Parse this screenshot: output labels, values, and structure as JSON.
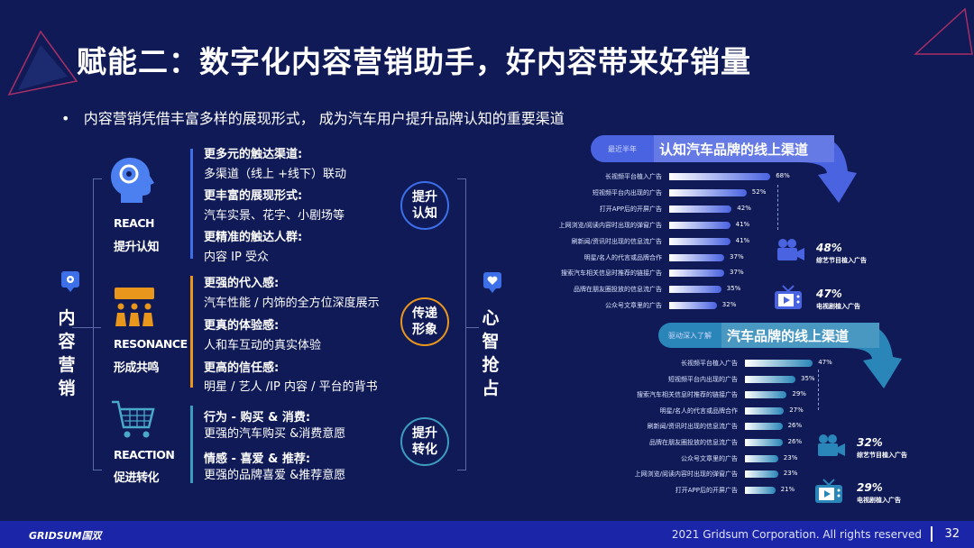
{
  "title": "赋能二：数字化内容营销助手，好内容带来好销量",
  "bullet": "内容营销凭借丰富多样的展现形式， 成为汽车用户提升品牌认知的重要渠道",
  "left_label": "内容营销",
  "right_label": "心智抢占",
  "stages": [
    {
      "en": "REACH",
      "cn": "提升认知",
      "circle": "提升认知",
      "color": "#3d6fe8",
      "lines": [
        [
          "更多元的触达渠道:",
          "b"
        ],
        [
          "多渠道（线上 +线下）联动",
          ""
        ],
        [
          "更丰富的展现形式:",
          "b"
        ],
        [
          "汽车实景、花字、小剧场等",
          ""
        ],
        [
          "更精准的触达人群:",
          "b"
        ],
        [
          "内容 IP 受众",
          ""
        ]
      ]
    },
    {
      "en": "RESONANCE",
      "cn": "形成共鸣",
      "circle": "传递形象",
      "color": "#e8961c",
      "lines": [
        [
          "更强的代入感:",
          "b"
        ],
        [
          "汽车性能 / 内饰的全方位深度展示",
          ""
        ],
        [
          "更真的体验感:",
          "b"
        ],
        [
          "人和车互动的真实体验",
          ""
        ],
        [
          "更高的信任感:",
          "b"
        ],
        [
          "明星 / 艺人 /IP 内容 / 平台的背书",
          ""
        ]
      ]
    },
    {
      "en": "REACTION",
      "cn": "促进转化",
      "circle": "提升转化",
      "color": "#3d9bbf",
      "lines": [
        [
          "行为 - 购买 & 消费:",
          "b"
        ],
        [
          "更强的汽车购买 &消费意愿",
          ""
        ],
        [
          "情感 - 喜爱 & 推荐:",
          "b"
        ],
        [
          "更强的品牌喜爱 &推荐意愿",
          ""
        ]
      ]
    }
  ],
  "chart_data": [
    {
      "type": "bar",
      "tag": "最近半年",
      "title": "认知汽车品牌的线上渠道",
      "color": "#4a63e0",
      "categories": [
        "长视频平台植入广告",
        "短视频平台内出现的广告",
        "打开APP后的开屏广告",
        "上网浏览/阅读内容时出现的弹窗广告",
        "刷新闻/资讯时出现的信息流广告",
        "明星/名人的代言或品牌合作",
        "搜索汽车相关信息时推荐的链接广告",
        "品牌在朋友圈投放的信息流广告",
        "公众号文章里的广告"
      ],
      "values": [
        68,
        52,
        42,
        41,
        41,
        37,
        37,
        35,
        32
      ],
      "callouts": [
        {
          "icon": "camera-icon",
          "value": "48%",
          "label": "综艺节目植入广告"
        },
        {
          "icon": "tv-icon",
          "value": "47%",
          "label": "电视剧植入广告"
        }
      ]
    },
    {
      "type": "bar",
      "tag": "驱动深入了解",
      "title": "汽车品牌的线上渠道",
      "color": "#2a86b8",
      "categories": [
        "长视频平台植入广告",
        "短视频平台内出现的广告",
        "搜索汽车相关信息时推荐的链接广告",
        "明星/名人的代言或品牌合作",
        "刷新闻/资讯时出现的信息流广告",
        "品牌在朋友圈投放的信息流广告",
        "公众号文章里的广告",
        "上网浏览/阅读内容时出现的弹窗广告",
        "打开APP后的开屏广告"
      ],
      "values": [
        47,
        35,
        29,
        27,
        26,
        26,
        23,
        23,
        21
      ],
      "callouts": [
        {
          "icon": "camera-icon",
          "value": "32%",
          "label": "综艺节目植入广告"
        },
        {
          "icon": "tv-icon",
          "value": "29%",
          "label": "电视剧植入广告"
        }
      ]
    }
  ],
  "footer": {
    "logo": "GRIDSUM国双",
    "copyright": "2021 Gridsum Corporation. All rights reserved",
    "page": "32"
  }
}
